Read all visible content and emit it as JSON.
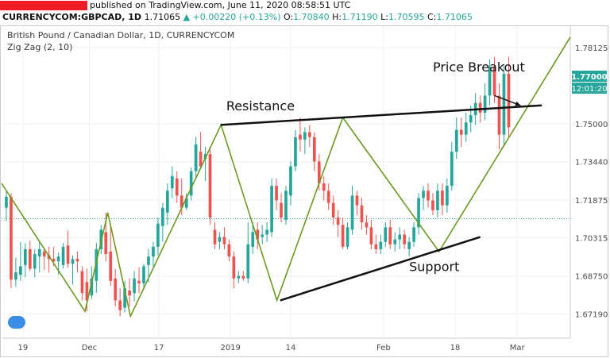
{
  "header": {
    "published": "published on TradingView.com, June 11, 2020 08:58:51 UTC",
    "symbol": "CURRENCYCOM:GBPCAD, 1D",
    "last": "1.71065",
    "change": "▲ +0.00220 (+0.13%)",
    "open_label": "O:",
    "open": "1.70840",
    "high_label": "H:",
    "high": "1.71190",
    "low_label": "L:",
    "low": "1.70595",
    "close_label": "C:",
    "close": "1.71065"
  },
  "colors": {
    "up": "#26a69a",
    "down": "#ef5350",
    "zigzag": "#6b9a1f",
    "trendline": "#111111",
    "price_label": "#26a69a",
    "current_line": "#26a69a"
  },
  "chart_data": {
    "type": "candlestick",
    "title": "British Pound / Canadian Dollar, 1D, CURRENCYCOM",
    "indicator": "Zig Zag (2, 10)",
    "price_label": "1.77000",
    "countdown_label": "12:01:20",
    "current_price": 1.711,
    "ylim": [
      1.662,
      1.79
    ],
    "yticks": [
      "1.78125",
      "1.75000",
      "1.73440",
      "1.71875",
      "1.70315",
      "1.68750",
      "1.67190"
    ],
    "xlim": [
      0,
      120
    ],
    "xticks": [
      {
        "label": "19",
        "x": 4.5
      },
      {
        "label": "Dec",
        "x": 18.5
      },
      {
        "label": "17",
        "x": 33.2
      },
      {
        "label": "2019",
        "x": 48.3
      },
      {
        "label": "14",
        "x": 61
      },
      {
        "label": "Feb",
        "x": 80.6
      },
      {
        "label": "18",
        "x": 95.7
      },
      {
        "label": "Mar",
        "x": 108.8
      }
    ],
    "candles": [
      {
        "x": 1,
        "o": 1.7155,
        "h": 1.7225,
        "l": 1.71,
        "c": 1.72
      },
      {
        "x": 2,
        "o": 1.72,
        "h": 1.7215,
        "l": 1.6825,
        "c": 1.686
      },
      {
        "x": 3,
        "o": 1.686,
        "h": 1.695,
        "l": 1.683,
        "c": 1.689
      },
      {
        "x": 4,
        "o": 1.688,
        "h": 1.7015,
        "l": 1.6855,
        "c": 1.6915
      },
      {
        "x": 5,
        "o": 1.692,
        "h": 1.701,
        "l": 1.687,
        "c": 1.6985
      },
      {
        "x": 6,
        "o": 1.6985,
        "h": 1.702,
        "l": 1.6895,
        "c": 1.6905
      },
      {
        "x": 7,
        "o": 1.6905,
        "h": 1.6985,
        "l": 1.687,
        "c": 1.6965
      },
      {
        "x": 8,
        "o": 1.6955,
        "h": 1.7015,
        "l": 1.689,
        "c": 1.6985
      },
      {
        "x": 9,
        "o": 1.6975,
        "h": 1.6985,
        "l": 1.69,
        "c": 1.6955
      },
      {
        "x": 10,
        "o": 1.696,
        "h": 1.6995,
        "l": 1.689,
        "c": 1.6945
      },
      {
        "x": 11,
        "o": 1.6945,
        "h": 1.6995,
        "l": 1.6915,
        "c": 1.6935
      },
      {
        "x": 12,
        "o": 1.6935,
        "h": 1.697,
        "l": 1.688,
        "c": 1.6955
      },
      {
        "x": 13,
        "o": 1.692,
        "h": 1.701,
        "l": 1.6905,
        "c": 1.6995
      },
      {
        "x": 14,
        "o": 1.7,
        "h": 1.706,
        "l": 1.691,
        "c": 1.6925
      },
      {
        "x": 15,
        "o": 1.6925,
        "h": 1.696,
        "l": 1.684,
        "c": 1.6945
      },
      {
        "x": 16,
        "o": 1.6945,
        "h": 1.6975,
        "l": 1.689,
        "c": 1.6935
      },
      {
        "x": 17,
        "o": 1.6895,
        "h": 1.6915,
        "l": 1.6775,
        "c": 1.6805
      },
      {
        "x": 18,
        "o": 1.685,
        "h": 1.6905,
        "l": 1.673,
        "c": 1.6775
      },
      {
        "x": 19,
        "o": 1.6795,
        "h": 1.6915,
        "l": 1.678,
        "c": 1.6865
      },
      {
        "x": 20,
        "o": 1.6855,
        "h": 1.701,
        "l": 1.6805,
        "c": 1.6985
      },
      {
        "x": 21,
        "o": 1.6985,
        "h": 1.7085,
        "l": 1.6965,
        "c": 1.7065
      },
      {
        "x": 22,
        "o": 1.7055,
        "h": 1.7135,
        "l": 1.6935,
        "c": 1.6965
      },
      {
        "x": 23,
        "o": 1.6975,
        "h": 1.709,
        "l": 1.6835,
        "c": 1.6855
      },
      {
        "x": 24,
        "o": 1.6865,
        "h": 1.6905,
        "l": 1.675,
        "c": 1.6775
      },
      {
        "x": 25,
        "o": 1.6775,
        "h": 1.6825,
        "l": 1.671,
        "c": 1.6735
      },
      {
        "x": 26,
        "o": 1.6745,
        "h": 1.6855,
        "l": 1.6725,
        "c": 1.6825
      },
      {
        "x": 27,
        "o": 1.6815,
        "h": 1.6865,
        "l": 1.675,
        "c": 1.6795
      },
      {
        "x": 28,
        "o": 1.6805,
        "h": 1.6895,
        "l": 1.677,
        "c": 1.6865
      },
      {
        "x": 29,
        "o": 1.6855,
        "h": 1.691,
        "l": 1.6805,
        "c": 1.6845
      },
      {
        "x": 30,
        "o": 1.6845,
        "h": 1.6925,
        "l": 1.682,
        "c": 1.6915
      },
      {
        "x": 31,
        "o": 1.692,
        "h": 1.6985,
        "l": 1.685,
        "c": 1.6955
      },
      {
        "x": 32,
        "o": 1.6955,
        "h": 1.7015,
        "l": 1.6915,
        "c": 1.6995
      },
      {
        "x": 33,
        "o": 1.6995,
        "h": 1.7115,
        "l": 1.696,
        "c": 1.709
      },
      {
        "x": 34,
        "o": 1.708,
        "h": 1.7175,
        "l": 1.7015,
        "c": 1.7155
      },
      {
        "x": 35,
        "o": 1.7135,
        "h": 1.7255,
        "l": 1.7085,
        "c": 1.7225
      },
      {
        "x": 36,
        "o": 1.7235,
        "h": 1.7325,
        "l": 1.7195,
        "c": 1.7285
      },
      {
        "x": 37,
        "o": 1.7275,
        "h": 1.7305,
        "l": 1.7175,
        "c": 1.7205
      },
      {
        "x": 38,
        "o": 1.7205,
        "h": 1.7275,
        "l": 1.7125,
        "c": 1.7155
      },
      {
        "x": 39,
        "o": 1.7155,
        "h": 1.7215,
        "l": 1.7145,
        "c": 1.7195
      },
      {
        "x": 40,
        "o": 1.7205,
        "h": 1.732,
        "l": 1.7185,
        "c": 1.7305
      },
      {
        "x": 41,
        "o": 1.7305,
        "h": 1.7445,
        "l": 1.7275,
        "c": 1.7415
      },
      {
        "x": 42,
        "o": 1.7385,
        "h": 1.7465,
        "l": 1.7315,
        "c": 1.7325
      },
      {
        "x": 43,
        "o": 1.7355,
        "h": 1.7405,
        "l": 1.7265,
        "c": 1.7375
      },
      {
        "x": 44,
        "o": 1.7375,
        "h": 1.7395,
        "l": 1.7085,
        "c": 1.7115
      },
      {
        "x": 45,
        "o": 1.7065,
        "h": 1.7095,
        "l": 1.6985,
        "c": 1.7005
      },
      {
        "x": 46,
        "o": 1.7015,
        "h": 1.7055,
        "l": 1.6985,
        "c": 1.7035
      },
      {
        "x": 47,
        "o": 1.7035,
        "h": 1.7075,
        "l": 1.6985,
        "c": 1.7005
      },
      {
        "x": 48,
        "o": 1.7005,
        "h": 1.7025,
        "l": 1.6935,
        "c": 1.6955
      },
      {
        "x": 49,
        "o": 1.6955,
        "h": 1.6975,
        "l": 1.6825,
        "c": 1.6865
      },
      {
        "x": 50,
        "o": 1.6865,
        "h": 1.6895,
        "l": 1.6845,
        "c": 1.6875
      },
      {
        "x": 51,
        "o": 1.6875,
        "h": 1.6895,
        "l": 1.6855,
        "c": 1.6865
      },
      {
        "x": 52,
        "o": 1.6865,
        "h": 1.7095,
        "l": 1.6845,
        "c": 1.7005
      },
      {
        "x": 53,
        "o": 1.6995,
        "h": 1.7095,
        "l": 1.6965,
        "c": 1.7055
      },
      {
        "x": 54,
        "o": 1.7065,
        "h": 1.7095,
        "l": 1.6985,
        "c": 1.7025
      },
      {
        "x": 55,
        "o": 1.7035,
        "h": 1.7085,
        "l": 1.7005,
        "c": 1.7045
      },
      {
        "x": 56,
        "o": 1.7045,
        "h": 1.7095,
        "l": 1.7015,
        "c": 1.7065
      },
      {
        "x": 57,
        "o": 1.7055,
        "h": 1.7275,
        "l": 1.7035,
        "c": 1.7245
      },
      {
        "x": 58,
        "o": 1.7245,
        "h": 1.7275,
        "l": 1.7145,
        "c": 1.7185
      },
      {
        "x": 59,
        "o": 1.7175,
        "h": 1.7215,
        "l": 1.7095,
        "c": 1.7115
      },
      {
        "x": 60,
        "o": 1.7105,
        "h": 1.7245,
        "l": 1.7085,
        "c": 1.7225
      },
      {
        "x": 61,
        "o": 1.7205,
        "h": 1.7345,
        "l": 1.7165,
        "c": 1.7325
      },
      {
        "x": 62,
        "o": 1.7325,
        "h": 1.7475,
        "l": 1.7305,
        "c": 1.7445
      },
      {
        "x": 63,
        "o": 1.7455,
        "h": 1.7525,
        "l": 1.7385,
        "c": 1.7435
      },
      {
        "x": 64,
        "o": 1.7435,
        "h": 1.7485,
        "l": 1.7375,
        "c": 1.7465
      },
      {
        "x": 65,
        "o": 1.7465,
        "h": 1.7495,
        "l": 1.7405,
        "c": 1.7445
      },
      {
        "x": 66,
        "o": 1.7445,
        "h": 1.7465,
        "l": 1.7305,
        "c": 1.7345
      },
      {
        "x": 67,
        "o": 1.7345,
        "h": 1.7375,
        "l": 1.7225,
        "c": 1.7255
      },
      {
        "x": 68,
        "o": 1.7255,
        "h": 1.7285,
        "l": 1.7185,
        "c": 1.7225
      },
      {
        "x": 69,
        "o": 1.7225,
        "h": 1.7255,
        "l": 1.7145,
        "c": 1.7175
      },
      {
        "x": 70,
        "o": 1.7175,
        "h": 1.7205,
        "l": 1.7085,
        "c": 1.7115
      },
      {
        "x": 71,
        "o": 1.7115,
        "h": 1.7145,
        "l": 1.7035,
        "c": 1.7085
      },
      {
        "x": 72,
        "o": 1.7085,
        "h": 1.7115,
        "l": 1.6985,
        "c": 1.6995
      },
      {
        "x": 73,
        "o": 1.6995,
        "h": 1.7095,
        "l": 1.6985,
        "c": 1.7075
      },
      {
        "x": 74,
        "o": 1.7065,
        "h": 1.7245,
        "l": 1.7045,
        "c": 1.7205
      },
      {
        "x": 75,
        "o": 1.7205,
        "h": 1.7225,
        "l": 1.7125,
        "c": 1.7165
      },
      {
        "x": 76,
        "o": 1.7165,
        "h": 1.7195,
        "l": 1.7065,
        "c": 1.7095
      },
      {
        "x": 77,
        "o": 1.7095,
        "h": 1.7125,
        "l": 1.7045,
        "c": 1.7075
      },
      {
        "x": 78,
        "o": 1.7075,
        "h": 1.7105,
        "l": 1.6985,
        "c": 1.7005
      },
      {
        "x": 79,
        "o": 1.7005,
        "h": 1.7045,
        "l": 1.6965,
        "c": 1.6985
      },
      {
        "x": 80,
        "o": 1.6985,
        "h": 1.7045,
        "l": 1.6965,
        "c": 1.7015
      },
      {
        "x": 81,
        "o": 1.7015,
        "h": 1.7095,
        "l": 1.6995,
        "c": 1.7075
      },
      {
        "x": 82,
        "o": 1.7075,
        "h": 1.7105,
        "l": 1.6985,
        "c": 1.7005
      },
      {
        "x": 83,
        "o": 1.7005,
        "h": 1.7055,
        "l": 1.6975,
        "c": 1.7025
      },
      {
        "x": 84,
        "o": 1.7025,
        "h": 1.7075,
        "l": 1.6985,
        "c": 1.7045
      },
      {
        "x": 85,
        "o": 1.7045,
        "h": 1.7065,
        "l": 1.6985,
        "c": 1.7005
      },
      {
        "x": 86,
        "o": 1.6985,
        "h": 1.7035,
        "l": 1.6955,
        "c": 1.7015
      },
      {
        "x": 87,
        "o": 1.7015,
        "h": 1.7095,
        "l": 1.6995,
        "c": 1.7075
      },
      {
        "x": 88,
        "o": 1.7075,
        "h": 1.7215,
        "l": 1.7045,
        "c": 1.7195
      },
      {
        "x": 89,
        "o": 1.7195,
        "h": 1.7245,
        "l": 1.7145,
        "c": 1.7225
      },
      {
        "x": 90,
        "o": 1.7225,
        "h": 1.7255,
        "l": 1.7155,
        "c": 1.7185
      },
      {
        "x": 91,
        "o": 1.7185,
        "h": 1.7215,
        "l": 1.7125,
        "c": 1.7145
      },
      {
        "x": 92,
        "o": 1.7145,
        "h": 1.7255,
        "l": 1.7115,
        "c": 1.7225
      },
      {
        "x": 93,
        "o": 1.7225,
        "h": 1.7255,
        "l": 1.7125,
        "c": 1.7165
      },
      {
        "x": 94,
        "o": 1.7165,
        "h": 1.7275,
        "l": 1.7135,
        "c": 1.7245
      },
      {
        "x": 95,
        "o": 1.7245,
        "h": 1.7425,
        "l": 1.7225,
        "c": 1.7385
      },
      {
        "x": 96,
        "o": 1.7385,
        "h": 1.7525,
        "l": 1.7355,
        "c": 1.7475
      },
      {
        "x": 97,
        "o": 1.7475,
        "h": 1.7525,
        "l": 1.7405,
        "c": 1.7455
      },
      {
        "x": 98,
        "o": 1.7455,
        "h": 1.7545,
        "l": 1.7425,
        "c": 1.7505
      },
      {
        "x": 99,
        "o": 1.7505,
        "h": 1.7575,
        "l": 1.7465,
        "c": 1.7535
      },
      {
        "x": 100,
        "o": 1.7535,
        "h": 1.7625,
        "l": 1.7495,
        "c": 1.7585
      },
      {
        "x": 101,
        "o": 1.7585,
        "h": 1.7615,
        "l": 1.7505,
        "c": 1.7545
      },
      {
        "x": 102,
        "o": 1.7545,
        "h": 1.7665,
        "l": 1.7515,
        "c": 1.7615
      },
      {
        "x": 103,
        "o": 1.7615,
        "h": 1.7765,
        "l": 1.7575,
        "c": 1.7735
      },
      {
        "x": 104,
        "o": 1.7735,
        "h": 1.7775,
        "l": 1.7585,
        "c": 1.7615
      },
      {
        "x": 105,
        "o": 1.7615,
        "h": 1.7665,
        "l": 1.7395,
        "c": 1.7455
      },
      {
        "x": 106,
        "o": 1.7455,
        "h": 1.7745,
        "l": 1.7405,
        "c": 1.7705
      },
      {
        "x": 107,
        "o": 1.7705,
        "h": 1.7775,
        "l": 1.7445,
        "c": 1.7485
      }
    ],
    "zigzag": [
      {
        "x": 0,
        "y": 1.7255
      },
      {
        "x": 17.6,
        "y": 1.673
      },
      {
        "x": 22.4,
        "y": 1.7135
      },
      {
        "x": 27.2,
        "y": 1.671
      },
      {
        "x": 46.3,
        "y": 1.7495
      },
      {
        "x": 58.1,
        "y": 1.6775
      },
      {
        "x": 72,
        "y": 1.7525
      },
      {
        "x": 92.3,
        "y": 1.6975
      },
      {
        "x": 120,
        "y": 1.7855
      }
    ],
    "resistance_line": {
      "x1": 46.2,
      "y1": 1.7495,
      "x2": 114,
      "y2": 1.7575
    },
    "support_line": {
      "x1": 58.8,
      "y1": 1.6775,
      "x2": 101,
      "y2": 1.7035
    },
    "breakout_arrow": {
      "x1": 104,
      "y1": 1.7615,
      "x2": 109.5,
      "y2": 1.7575
    },
    "annotations": [
      {
        "text": "Resistance",
        "x": 47.4,
        "y": 1.7555
      },
      {
        "text": "Price Breakout",
        "x": 91,
        "y": 1.7715
      },
      {
        "text": "Support",
        "x": 86,
        "y": 1.6895
      }
    ]
  }
}
